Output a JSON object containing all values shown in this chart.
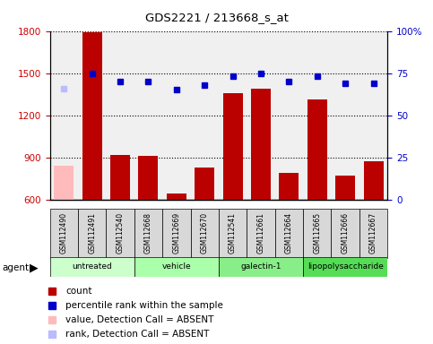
{
  "title": "GDS2221 / 213668_s_at",
  "samples": [
    "GSM112490",
    "GSM112491",
    "GSM112540",
    "GSM112668",
    "GSM112669",
    "GSM112670",
    "GSM112541",
    "GSM112661",
    "GSM112664",
    "GSM112665",
    "GSM112666",
    "GSM112667"
  ],
  "counts": [
    840,
    1790,
    920,
    910,
    640,
    830,
    1360,
    1390,
    790,
    1310,
    770,
    870
  ],
  "absent_indices": [
    0
  ],
  "percentile_ranks": [
    66,
    75,
    70,
    70,
    65,
    68,
    73,
    75,
    70,
    73,
    69,
    69
  ],
  "absent_rank_indices": [
    0
  ],
  "ylim_left": [
    600,
    1800
  ],
  "ylim_right": [
    0,
    100
  ],
  "yticks_left": [
    600,
    900,
    1200,
    1500,
    1800
  ],
  "yticks_right": [
    0,
    25,
    50,
    75,
    100
  ],
  "groups": [
    {
      "label": "untreated",
      "indices": [
        0,
        1,
        2
      ],
      "color": "#ccffcc"
    },
    {
      "label": "vehicle",
      "indices": [
        3,
        4,
        5
      ],
      "color": "#aaffaa"
    },
    {
      "label": "galectin-1",
      "indices": [
        6,
        7,
        8
      ],
      "color": "#88ee88"
    },
    {
      "label": "lipopolysaccharide",
      "indices": [
        9,
        10,
        11
      ],
      "color": "#55dd55"
    }
  ],
  "bar_color_normal": "#bb0000",
  "bar_color_absent": "#ffbbbb",
  "dot_color_normal": "#0000cc",
  "dot_color_absent": "#bbbbff",
  "plot_bg": "#f0f0f0",
  "xlabel_color": "#cc0000",
  "ylabel_right_color": "#0000cc",
  "legend_items": [
    {
      "color": "#bb0000",
      "label": "count",
      "marker": "s"
    },
    {
      "color": "#0000cc",
      "label": "percentile rank within the sample",
      "marker": "s"
    },
    {
      "color": "#ffbbbb",
      "label": "value, Detection Call = ABSENT",
      "marker": "s"
    },
    {
      "color": "#bbbbff",
      "label": "rank, Detection Call = ABSENT",
      "marker": "s"
    }
  ]
}
